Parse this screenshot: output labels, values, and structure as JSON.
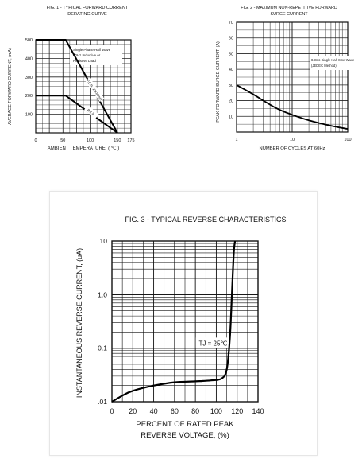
{
  "chart_data": [
    {
      "type": "line",
      "title": "FIG. 1 - TYPICAL FORWARD CURRENT",
      "subtitle": "DERATING CURVE",
      "xlabel": "AMBIENT TEMPERATURE, ( ℃ )",
      "ylabel": "AVERAGE FORWARD CURRENT, (mA)",
      "xlim": [
        0,
        175
      ],
      "ylim": [
        0,
        500
      ],
      "x_ticks": [
        "0",
        "50",
        "100",
        "150",
        "175"
      ],
      "y_ticks": [
        "100",
        "200",
        "300",
        "400",
        "500"
      ],
      "grid": true,
      "legend_text": [
        "Single Phase Half Wave",
        "60Hz Inductive or",
        "Resistive Load"
      ],
      "series": [
        {
          "name": "P.C.B. 10x10mm",
          "x": [
            0,
            55,
            150
          ],
          "y": [
            500,
            500,
            0
          ]
        },
        {
          "name": "P.C.B.",
          "x": [
            0,
            55,
            150
          ],
          "y": [
            200,
            200,
            0
          ]
        }
      ]
    },
    {
      "type": "line",
      "title": "FIG. 2 - MAXIMUM NON-REPETITIVE FORWARD",
      "subtitle": "SURGE CURRENT",
      "xlabel": "NUMBER OF CYCLES AT 60Hz",
      "ylabel": "PEAK FORWARD SURGE CURRENT, (A)",
      "x_scale": "log",
      "xlim": [
        1,
        100
      ],
      "ylim": [
        0,
        70
      ],
      "x_ticks": [
        "1",
        "10",
        "100"
      ],
      "y_ticks": [
        "10",
        "20",
        "30",
        "40",
        "50",
        "60",
        "70"
      ],
      "grid": true,
      "legend_text": [
        "8.3ms Single Half Sine-Wave",
        "(JEDEC Method)"
      ],
      "series": [
        {
          "x": [
            1,
            2,
            5,
            10,
            20,
            50,
            100
          ],
          "y": [
            30,
            24,
            15.5,
            11,
            7.5,
            4,
            2
          ]
        }
      ]
    },
    {
      "type": "line",
      "title": "FIG. 3 - TYPICAL REVERSE CHARACTERISTICS",
      "xlabel": "PERCENT OF RATED PEAK",
      "xlabel2": "REVERSE VOLTAGE, (%)",
      "ylabel": "INSTANTANEOUS REVERSE CURRENT, (uA)",
      "y_scale": "log",
      "xlim": [
        0,
        140
      ],
      "ylim": [
        0.01,
        10
      ],
      "x_ticks": [
        "0",
        "20",
        "40",
        "60",
        "80",
        "100",
        "120",
        "140"
      ],
      "y_ticks": [
        ".01",
        "0.1",
        "1.0",
        "10"
      ],
      "grid": true,
      "annotation": "TJ = 25℃",
      "series": [
        {
          "x": [
            0,
            10,
            20,
            40,
            60,
            80,
            95,
            105,
            110,
            113,
            115,
            116,
            117,
            118
          ],
          "y": [
            0.01,
            0.013,
            0.016,
            0.02,
            0.023,
            0.024,
            0.025,
            0.027,
            0.04,
            0.15,
            1.0,
            3.0,
            7.0,
            10
          ]
        }
      ]
    }
  ]
}
